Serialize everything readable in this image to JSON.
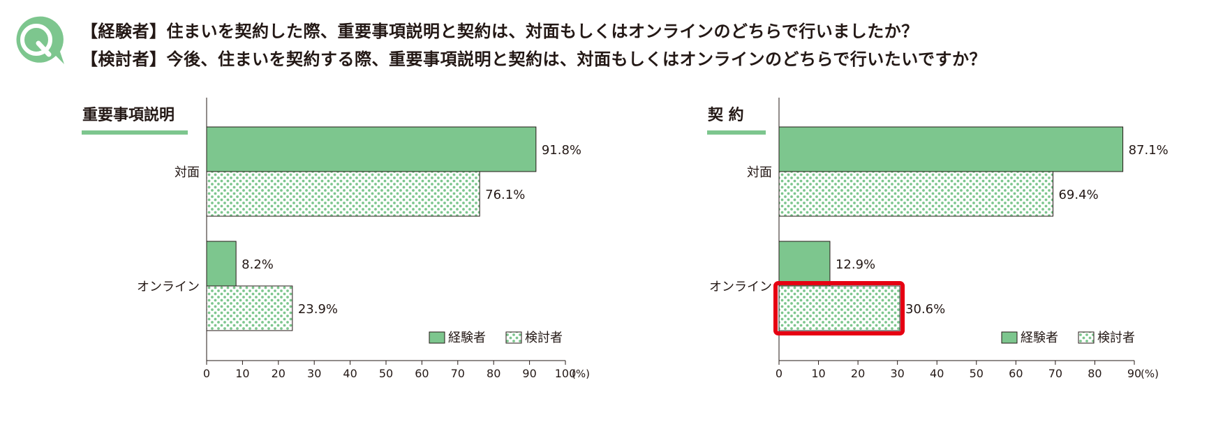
{
  "question": {
    "badge": "Q",
    "line1": "【経験者】住まいを契約した際、重要事項説明と契約は、対面もしくはオンラインのどちらで行いましたか？",
    "line2": "【検討者】今後、住まいを契約する際、重要事項説明と契約は、対面もしくはオンラインのどちらで行いたいですか？"
  },
  "colors": {
    "accent": "#7dc68e",
    "experienced_fill": "#7dc68e",
    "dot_color": "#7dc68e",
    "highlight": "#e60012",
    "text": "#231815"
  },
  "chart_data": [
    {
      "type": "bar",
      "orientation": "horizontal",
      "title": "重要事項説明",
      "categories": [
        "対面",
        "オンライン"
      ],
      "series": [
        {
          "name": "経験者",
          "values": [
            91.8,
            8.2
          ]
        },
        {
          "name": "検討者",
          "values": [
            76.1,
            23.9
          ]
        }
      ],
      "data_labels": [
        [
          "91.8%",
          "8.2%"
        ],
        [
          "76.1%",
          "23.9%"
        ]
      ],
      "xlim": [
        0,
        100
      ],
      "xticks": [
        0,
        10,
        20,
        30,
        40,
        50,
        60,
        70,
        80,
        90,
        100
      ],
      "xunit": "(%)",
      "legend": "bottom-right",
      "grid": false
    },
    {
      "type": "bar",
      "orientation": "horizontal",
      "title": "契 約",
      "categories": [
        "対面",
        "オンライン"
      ],
      "series": [
        {
          "name": "経験者",
          "values": [
            87.1,
            12.9
          ]
        },
        {
          "name": "検討者",
          "values": [
            69.4,
            30.6
          ]
        }
      ],
      "data_labels": [
        [
          "87.1%",
          "12.9%"
        ],
        [
          "69.4%",
          "30.6%"
        ]
      ],
      "xlim": [
        0,
        90
      ],
      "xticks": [
        0,
        10,
        20,
        30,
        40,
        50,
        60,
        70,
        80,
        90
      ],
      "xunit": "(%)",
      "legend": "bottom-right",
      "grid": false,
      "highlight": {
        "series": "検討者",
        "category": "オンライン"
      }
    }
  ]
}
